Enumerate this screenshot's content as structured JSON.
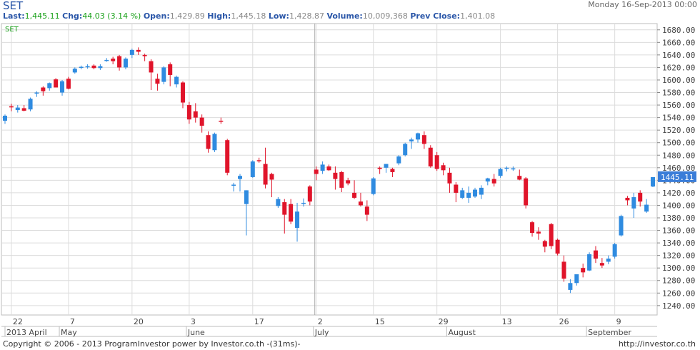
{
  "header": {
    "symbol": "SET",
    "date": "Monday 16-Sep-2013 00:00",
    "last_label": "Last:",
    "last": "1,445.11",
    "chg_label": "Chg:",
    "chg": "44.03 (3.14 %)",
    "open_label": "Open:",
    "open": "1,429.89",
    "high_label": "High:",
    "high": "1,445.18",
    "low_label": "Low:",
    "low": "1,428.87",
    "volume_label": "Volume:",
    "volume": "10,009,368",
    "prev_label": "Prev Close:",
    "prev": "1,401.08"
  },
  "footer": {
    "left": "Copyright © 2006 - 2013 ProgramInvestor power by Investor.co.th  -(31ms)-",
    "right": "http://investor.co.th"
  },
  "colors": {
    "up": "#2f8be0",
    "down": "#e0142a",
    "axis_text": "#444",
    "grid": "#dcdcdc",
    "price_tag": "#3a7dd8"
  },
  "chart_data": {
    "type": "candlestick",
    "series_label": "SET",
    "price_tag": "1445.11",
    "ylim": [
      1225,
      1690
    ],
    "y_ticks": [
      1240,
      1260,
      1280,
      1300,
      1320,
      1340,
      1360,
      1380,
      1400,
      1420,
      1440,
      1460,
      1480,
      1500,
      1520,
      1540,
      1560,
      1580,
      1600,
      1620,
      1640,
      1660,
      1680
    ],
    "x_day_labels": [
      {
        "label": "22",
        "index": 1
      },
      {
        "label": "7",
        "index": 10
      },
      {
        "label": "20",
        "index": 20
      },
      {
        "label": "3",
        "index": 29
      },
      {
        "label": "17",
        "index": 39
      },
      {
        "label": "2",
        "index": 49
      },
      {
        "label": "15",
        "index": 58
      },
      {
        "label": "29",
        "index": 68
      },
      {
        "label": "13",
        "index": 78
      },
      {
        "label": "26",
        "index": 87
      },
      {
        "label": "9",
        "index": 96
      }
    ],
    "x_month_labels": [
      {
        "label": "2013 April",
        "index": 0
      },
      {
        "label": "May",
        "index": 9
      },
      {
        "label": "June",
        "index": 29
      },
      {
        "label": "July",
        "index": 49
      },
      {
        "label": "August",
        "index": 70
      },
      {
        "label": "September",
        "index": 92
      }
    ],
    "candles": [
      {
        "o": 1535,
        "h": 1545,
        "l": 1530,
        "c": 1543
      },
      {
        "o": 1558,
        "h": 1562,
        "l": 1550,
        "c": 1557
      },
      {
        "o": 1552,
        "h": 1560,
        "l": 1548,
        "c": 1556
      },
      {
        "o": 1555,
        "h": 1560,
        "l": 1550,
        "c": 1551
      },
      {
        "o": 1553,
        "h": 1572,
        "l": 1550,
        "c": 1570
      },
      {
        "o": 1579,
        "h": 1582,
        "l": 1573,
        "c": 1580
      },
      {
        "o": 1588,
        "h": 1590,
        "l": 1575,
        "c": 1582
      },
      {
        "o": 1587,
        "h": 1596,
        "l": 1583,
        "c": 1595
      },
      {
        "o": 1601,
        "h": 1603,
        "l": 1590,
        "c": 1588
      },
      {
        "o": 1580,
        "h": 1600,
        "l": 1575,
        "c": 1598
      },
      {
        "o": 1602,
        "h": 1605,
        "l": 1585,
        "c": 1586
      },
      {
        "o": 1612,
        "h": 1620,
        "l": 1610,
        "c": 1618
      },
      {
        "o": 1620,
        "h": 1623,
        "l": 1617,
        "c": 1621
      },
      {
        "o": 1621,
        "h": 1625,
        "l": 1618,
        "c": 1622
      },
      {
        "o": 1623,
        "h": 1625,
        "l": 1617,
        "c": 1619
      },
      {
        "o": 1619,
        "h": 1625,
        "l": 1616,
        "c": 1622
      },
      {
        "o": 1631,
        "h": 1635,
        "l": 1629,
        "c": 1632
      },
      {
        "o": 1634,
        "h": 1637,
        "l": 1625,
        "c": 1630
      },
      {
        "o": 1638,
        "h": 1640,
        "l": 1615,
        "c": 1620
      },
      {
        "o": 1620,
        "h": 1636,
        "l": 1617,
        "c": 1634
      },
      {
        "o": 1640,
        "h": 1650,
        "l": 1635,
        "c": 1648
      },
      {
        "o": 1648,
        "h": 1652,
        "l": 1640,
        "c": 1645
      },
      {
        "o": 1640,
        "h": 1642,
        "l": 1630,
        "c": 1638
      },
      {
        "o": 1630,
        "h": 1633,
        "l": 1584,
        "c": 1612
      },
      {
        "o": 1602,
        "h": 1610,
        "l": 1583,
        "c": 1594
      },
      {
        "o": 1597,
        "h": 1622,
        "l": 1593,
        "c": 1620
      },
      {
        "o": 1625,
        "h": 1628,
        "l": 1590,
        "c": 1608
      },
      {
        "o": 1593,
        "h": 1607,
        "l": 1588,
        "c": 1605
      },
      {
        "o": 1596,
        "h": 1598,
        "l": 1555,
        "c": 1564
      },
      {
        "o": 1560,
        "h": 1565,
        "l": 1530,
        "c": 1537
      },
      {
        "o": 1550,
        "h": 1563,
        "l": 1532,
        "c": 1540
      },
      {
        "o": 1540,
        "h": 1545,
        "l": 1516,
        "c": 1527
      },
      {
        "o": 1512,
        "h": 1518,
        "l": 1484,
        "c": 1490
      },
      {
        "o": 1488,
        "h": 1516,
        "l": 1485,
        "c": 1514
      },
      {
        "o": 1535,
        "h": 1540,
        "l": 1530,
        "c": 1534
      },
      {
        "o": 1504,
        "h": 1506,
        "l": 1448,
        "c": 1452
      },
      {
        "o": 1432,
        "h": 1436,
        "l": 1422,
        "c": 1433
      },
      {
        "o": 1442,
        "h": 1450,
        "l": 1422,
        "c": 1447
      },
      {
        "o": 1402,
        "h": 1424,
        "l": 1352,
        "c": 1424
      },
      {
        "o": 1445,
        "h": 1472,
        "l": 1444,
        "c": 1470
      },
      {
        "o": 1472,
        "h": 1476,
        "l": 1468,
        "c": 1471
      },
      {
        "o": 1466,
        "h": 1492,
        "l": 1427,
        "c": 1433
      },
      {
        "o": 1450,
        "h": 1452,
        "l": 1413,
        "c": 1441
      },
      {
        "o": 1399,
        "h": 1413,
        "l": 1396,
        "c": 1410
      },
      {
        "o": 1405,
        "h": 1410,
        "l": 1355,
        "c": 1385
      },
      {
        "o": 1402,
        "h": 1410,
        "l": 1370,
        "c": 1374
      },
      {
        "o": 1364,
        "h": 1404,
        "l": 1342,
        "c": 1390
      },
      {
        "o": 1403,
        "h": 1411,
        "l": 1398,
        "c": 1404
      },
      {
        "o": 1430,
        "h": 1432,
        "l": 1400,
        "c": 1406
      },
      {
        "o": 1457,
        "h": 1462,
        "l": 1440,
        "c": 1450
      },
      {
        "o": 1455,
        "h": 1470,
        "l": 1450,
        "c": 1465
      },
      {
        "o": 1462,
        "h": 1465,
        "l": 1455,
        "c": 1456
      },
      {
        "o": 1452,
        "h": 1462,
        "l": 1425,
        "c": 1442
      },
      {
        "o": 1453,
        "h": 1455,
        "l": 1421,
        "c": 1428
      },
      {
        "o": 1440,
        "h": 1444,
        "l": 1432,
        "c": 1435
      },
      {
        "o": 1420,
        "h": 1440,
        "l": 1410,
        "c": 1412
      },
      {
        "o": 1406,
        "h": 1420,
        "l": 1398,
        "c": 1400
      },
      {
        "o": 1398,
        "h": 1408,
        "l": 1375,
        "c": 1385
      },
      {
        "o": 1418,
        "h": 1445,
        "l": 1416,
        "c": 1443
      },
      {
        "o": 1460,
        "h": 1462,
        "l": 1450,
        "c": 1458
      },
      {
        "o": 1460,
        "h": 1466,
        "l": 1452,
        "c": 1466
      },
      {
        "o": 1458,
        "h": 1460,
        "l": 1445,
        "c": 1453
      },
      {
        "o": 1467,
        "h": 1480,
        "l": 1464,
        "c": 1478
      },
      {
        "o": 1480,
        "h": 1500,
        "l": 1478,
        "c": 1498
      },
      {
        "o": 1502,
        "h": 1508,
        "l": 1490,
        "c": 1505
      },
      {
        "o": 1505,
        "h": 1516,
        "l": 1500,
        "c": 1515
      },
      {
        "o": 1512,
        "h": 1518,
        "l": 1490,
        "c": 1498
      },
      {
        "o": 1492,
        "h": 1496,
        "l": 1460,
        "c": 1462
      },
      {
        "o": 1480,
        "h": 1485,
        "l": 1455,
        "c": 1458
      },
      {
        "o": 1464,
        "h": 1468,
        "l": 1448,
        "c": 1456
      },
      {
        "o": 1452,
        "h": 1460,
        "l": 1420,
        "c": 1435
      },
      {
        "o": 1433,
        "h": 1437,
        "l": 1405,
        "c": 1420
      },
      {
        "o": 1412,
        "h": 1428,
        "l": 1410,
        "c": 1424
      },
      {
        "o": 1412,
        "h": 1430,
        "l": 1404,
        "c": 1420
      },
      {
        "o": 1414,
        "h": 1428,
        "l": 1412,
        "c": 1425
      },
      {
        "o": 1417,
        "h": 1432,
        "l": 1410,
        "c": 1428
      },
      {
        "o": 1438,
        "h": 1444,
        "l": 1432,
        "c": 1443
      },
      {
        "o": 1442,
        "h": 1450,
        "l": 1430,
        "c": 1435
      },
      {
        "o": 1447,
        "h": 1460,
        "l": 1444,
        "c": 1458
      },
      {
        "o": 1460,
        "h": 1462,
        "l": 1454,
        "c": 1460
      },
      {
        "o": 1459,
        "h": 1462,
        "l": 1455,
        "c": 1459
      },
      {
        "o": 1447,
        "h": 1457,
        "l": 1440,
        "c": 1441
      },
      {
        "o": 1443,
        "h": 1445,
        "l": 1395,
        "c": 1400
      },
      {
        "o": 1373,
        "h": 1375,
        "l": 1350,
        "c": 1356
      },
      {
        "o": 1358,
        "h": 1365,
        "l": 1345,
        "c": 1355
      },
      {
        "o": 1343,
        "h": 1345,
        "l": 1325,
        "c": 1334
      },
      {
        "o": 1370,
        "h": 1372,
        "l": 1330,
        "c": 1335
      },
      {
        "o": 1345,
        "h": 1347,
        "l": 1320,
        "c": 1323
      },
      {
        "o": 1310,
        "h": 1320,
        "l": 1278,
        "c": 1283
      },
      {
        "o": 1265,
        "h": 1282,
        "l": 1260,
        "c": 1276
      },
      {
        "o": 1276,
        "h": 1290,
        "l": 1272,
        "c": 1290
      },
      {
        "o": 1300,
        "h": 1307,
        "l": 1285,
        "c": 1293
      },
      {
        "o": 1296,
        "h": 1325,
        "l": 1295,
        "c": 1322
      },
      {
        "o": 1328,
        "h": 1335,
        "l": 1308,
        "c": 1315
      },
      {
        "o": 1308,
        "h": 1316,
        "l": 1300,
        "c": 1304
      },
      {
        "o": 1310,
        "h": 1320,
        "l": 1306,
        "c": 1315
      },
      {
        "o": 1318,
        "h": 1340,
        "l": 1315,
        "c": 1338
      },
      {
        "o": 1352,
        "h": 1385,
        "l": 1350,
        "c": 1383
      },
      {
        "o": 1412,
        "h": 1415,
        "l": 1400,
        "c": 1408
      },
      {
        "o": 1395,
        "h": 1420,
        "l": 1380,
        "c": 1413
      },
      {
        "o": 1420,
        "h": 1424,
        "l": 1398,
        "c": 1406
      },
      {
        "o": 1390,
        "h": 1410,
        "l": 1388,
        "c": 1401
      },
      {
        "o": 1430,
        "h": 1445,
        "l": 1429,
        "c": 1445
      }
    ]
  }
}
